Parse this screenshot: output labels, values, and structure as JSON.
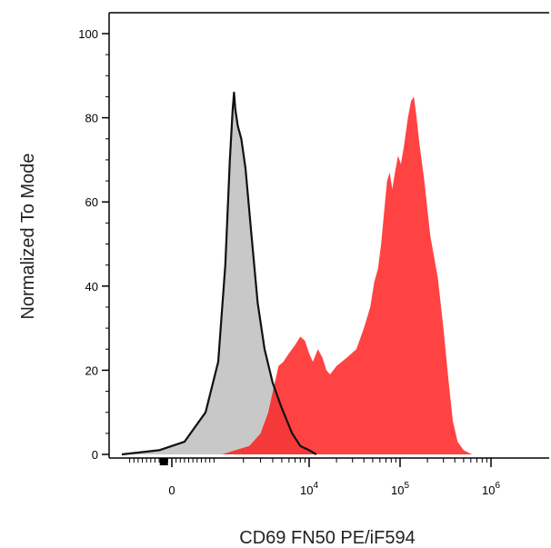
{
  "chart_data": {
    "type": "area",
    "xlabel": "CD69  FN50 PE/iF594",
    "ylabel": "Normalized To Mode",
    "ylim": [
      0,
      100
    ],
    "y_ticks": [
      {
        "value": 0,
        "label": "0"
      },
      {
        "value": 20,
        "label": "20"
      },
      {
        "value": 40,
        "label": "40"
      },
      {
        "value": 60,
        "label": "60"
      },
      {
        "value": 80,
        "label": "80"
      },
      {
        "value": 100,
        "label": "100"
      }
    ],
    "x_scale": "biexponential",
    "x_ticks": [
      {
        "value": 0,
        "base": "0",
        "exp": ""
      },
      {
        "value": 10000,
        "base": "10",
        "exp": "4"
      },
      {
        "value": 100000,
        "base": "10",
        "exp": "5"
      },
      {
        "value": 1000000,
        "base": "10",
        "exp": "6"
      }
    ],
    "grid": false,
    "legend": "none",
    "series": [
      {
        "color": "#c8c8c8",
        "stroke": "#111111",
        "points": [
          [
            -1500,
            0
          ],
          [
            -300,
            1
          ],
          [
            300,
            3
          ],
          [
            800,
            10
          ],
          [
            1100,
            22
          ],
          [
            1300,
            45
          ],
          [
            1450,
            70
          ],
          [
            1550,
            82
          ],
          [
            1600,
            86
          ],
          [
            1650,
            82
          ],
          [
            1750,
            78
          ],
          [
            1900,
            75
          ],
          [
            2100,
            68
          ],
          [
            2400,
            53
          ],
          [
            2800,
            36
          ],
          [
            3300,
            25
          ],
          [
            4000,
            17
          ],
          [
            5000,
            11
          ],
          [
            6500,
            5
          ],
          [
            8000,
            2
          ],
          [
            10000,
            1
          ],
          [
            12000,
            0
          ]
        ]
      },
      {
        "color": "#ff1a1a",
        "stroke": "#ff1a1a",
        "points": [
          [
            1200,
            0
          ],
          [
            2300,
            2
          ],
          [
            3000,
            5
          ],
          [
            3600,
            10
          ],
          [
            4100,
            16
          ],
          [
            4600,
            21
          ],
          [
            5200,
            22
          ],
          [
            6000,
            24
          ],
          [
            7000,
            26
          ],
          [
            8000,
            28
          ],
          [
            9000,
            27
          ],
          [
            10000,
            24
          ],
          [
            11000,
            22
          ],
          [
            12500,
            25
          ],
          [
            14000,
            23
          ],
          [
            15500,
            20
          ],
          [
            17000,
            19
          ],
          [
            20000,
            21
          ],
          [
            26000,
            23
          ],
          [
            33000,
            25
          ],
          [
            40000,
            30
          ],
          [
            47000,
            35
          ],
          [
            52000,
            41
          ],
          [
            57000,
            44
          ],
          [
            62000,
            50
          ],
          [
            67000,
            58
          ],
          [
            72000,
            65
          ],
          [
            77000,
            67
          ],
          [
            82000,
            63
          ],
          [
            88000,
            67
          ],
          [
            95000,
            71
          ],
          [
            102000,
            69
          ],
          [
            110000,
            73
          ],
          [
            122000,
            80
          ],
          [
            132000,
            84
          ],
          [
            142000,
            85
          ],
          [
            152000,
            80
          ],
          [
            163000,
            74
          ],
          [
            185000,
            65
          ],
          [
            215000,
            52
          ],
          [
            260000,
            42
          ],
          [
            300000,
            30
          ],
          [
            340000,
            18
          ],
          [
            380000,
            8
          ],
          [
            430000,
            3
          ],
          [
            500000,
            1
          ],
          [
            620000,
            0
          ]
        ]
      }
    ]
  }
}
